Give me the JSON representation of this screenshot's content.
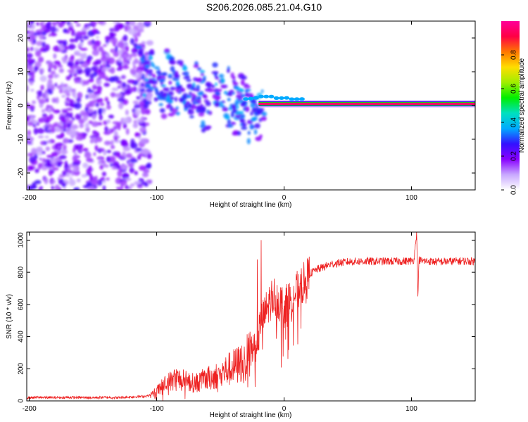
{
  "title": "S206.2026.085.21.04.G10",
  "chart_data": [
    {
      "type": "heatmap",
      "xlabel": "Height of straight line (km)",
      "ylabel": "Frequency (Hz)",
      "xlim": [
        -202,
        150
      ],
      "ylim": [
        -25,
        25
      ],
      "xticks": [
        -200,
        -100,
        0,
        100
      ],
      "yticks": [
        -20,
        -10,
        0,
        10,
        20
      ],
      "colorbar": {
        "label": "Normalized spectral amplitude",
        "range": [
          0,
          1
        ],
        "ticks": [
          0.0,
          0.2,
          0.4,
          0.6,
          0.8
        ],
        "tick_labels": [
          "0.0",
          "0.2",
          "0.4",
          "0.6",
          "0.8"
        ],
        "colors": [
          "#ffffff",
          "#c8a8ff",
          "#8800ff",
          "#3311ff",
          "#00aaff",
          "#00e0c0",
          "#00ee00",
          "#a0ee00",
          "#ffdd00",
          "#ff7700",
          "#ff0044",
          "#ff0099"
        ]
      },
      "features": [
        {
          "name": "diffuse noise region",
          "x_range": [
            -202,
            -105
          ],
          "f_range": [
            -25,
            25
          ],
          "amplitude": 0.15
        },
        {
          "name": "slanted striations",
          "x_range": [
            -120,
            -15
          ],
          "f_range": [
            -12,
            20
          ],
          "amplitude": 0.3
        },
        {
          "name": "carrier line",
          "x_range": [
            -20,
            150
          ],
          "frequency": 0.5,
          "amplitude": 0.95
        }
      ]
    },
    {
      "type": "line",
      "xlabel": "Height of straight line (km)",
      "ylabel": "SNR (10 * v/v)",
      "xlim": [
        -202,
        150
      ],
      "ylim": [
        0,
        1050
      ],
      "xticks": [
        -200,
        -100,
        0,
        100
      ],
      "yticks": [
        0,
        200,
        400,
        600,
        800,
        1000
      ],
      "color": "#ee2222",
      "series": [
        {
          "name": "SNR",
          "x": [
            -202,
            -190,
            -180,
            -170,
            -160,
            -150,
            -140,
            -130,
            -120,
            -110,
            -105,
            -100,
            -95,
            -90,
            -85,
            -80,
            -75,
            -70,
            -65,
            -60,
            -55,
            -50,
            -45,
            -40,
            -35,
            -30,
            -28,
            -25,
            -22,
            -20,
            -18,
            -16,
            -14,
            -12,
            -10,
            -8,
            -6,
            -4,
            -2,
            0,
            2,
            4,
            6,
            8,
            10,
            12,
            14,
            16,
            18,
            20,
            25,
            30,
            35,
            40,
            45,
            50,
            60,
            70,
            80,
            90,
            100,
            102,
            104,
            105,
            106,
            108,
            110,
            120,
            130,
            140,
            150
          ],
          "y": [
            20,
            22,
            20,
            22,
            21,
            20,
            22,
            20,
            25,
            28,
            35,
            60,
            95,
            120,
            140,
            130,
            120,
            110,
            125,
            140,
            150,
            170,
            190,
            210,
            230,
            270,
            300,
            330,
            370,
            420,
            480,
            520,
            560,
            600,
            640,
            650,
            640,
            620,
            600,
            580,
            600,
            620,
            640,
            660,
            680,
            700,
            720,
            740,
            760,
            790,
            815,
            830,
            845,
            855,
            860,
            865,
            868,
            868,
            868,
            868,
            870,
            880,
            1050,
            660,
            880,
            868,
            870,
            865,
            868,
            870,
            868
          ]
        }
      ],
      "spikes": [
        {
          "x": -18,
          "y": 1000
        },
        {
          "x": -21,
          "y": 880
        },
        {
          "x": -17,
          "y": 320
        },
        {
          "x": 104,
          "y": 1050
        },
        {
          "x": 105,
          "y": 650
        }
      ]
    }
  ]
}
